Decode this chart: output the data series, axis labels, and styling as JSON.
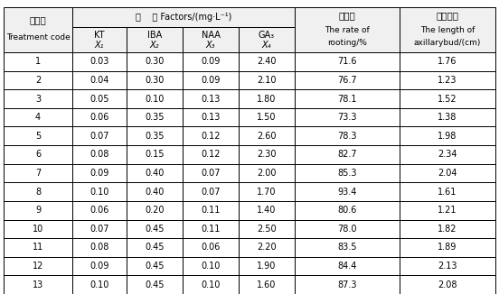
{
  "col1_header1": "处理号",
  "col1_header2": "Treatment code",
  "group_header": "因    素 Factors/(mg·L⁻¹)",
  "sub_headers": [
    "KT",
    "IBA",
    "NAA",
    "GA₃"
  ],
  "sub_vars": [
    "X₁",
    "X₂",
    "X₃",
    "X₄"
  ],
  "col_rooting_h1": "生根率",
  "col_rooting_h2": "The rate of",
  "col_rooting_h3": "rooting/%",
  "col_bud_h1": "腌芽长度",
  "col_bud_h2": "The length of",
  "col_bud_h3": "axillarybud/(cm)",
  "rows": [
    [
      1,
      0.03,
      0.3,
      0.09,
      2.4,
      71.6,
      1.76
    ],
    [
      2,
      0.04,
      0.3,
      0.09,
      2.1,
      76.7,
      1.23
    ],
    [
      3,
      0.05,
      0.1,
      0.13,
      1.8,
      78.1,
      1.52
    ],
    [
      4,
      0.06,
      0.35,
      0.13,
      1.5,
      73.3,
      1.38
    ],
    [
      5,
      0.07,
      0.35,
      0.12,
      2.6,
      78.3,
      1.98
    ],
    [
      6,
      0.08,
      0.15,
      0.12,
      2.3,
      82.7,
      2.34
    ],
    [
      7,
      0.09,
      0.4,
      0.07,
      2.0,
      85.3,
      2.04
    ],
    [
      8,
      0.1,
      0.4,
      0.07,
      1.7,
      93.4,
      1.61
    ],
    [
      9,
      0.06,
      0.2,
      0.11,
      1.4,
      80.6,
      1.21
    ],
    [
      10,
      0.07,
      0.45,
      0.11,
      2.5,
      78.0,
      1.82
    ],
    [
      11,
      0.08,
      0.45,
      0.06,
      2.2,
      83.5,
      1.89
    ],
    [
      12,
      0.09,
      0.45,
      0.1,
      1.9,
      84.4,
      2.13
    ],
    [
      13,
      0.1,
      0.45,
      0.1,
      1.6,
      87.3,
      2.08
    ]
  ],
  "bg_color": "#ffffff",
  "border_color": "#000000",
  "text_color": "#000000",
  "header_bg": "#f0f0f0",
  "figsize": [
    5.52,
    3.26
  ],
  "dpi": 100
}
